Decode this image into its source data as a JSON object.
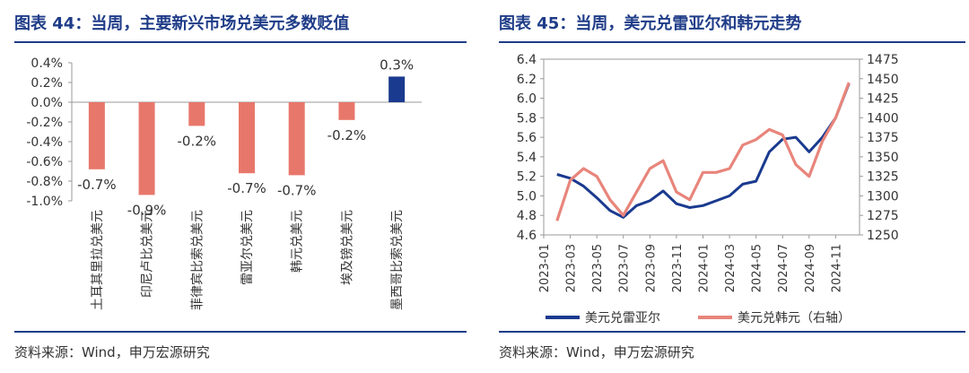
{
  "left": {
    "title": "图表 44：当周，主要新兴市场兑美元多数贬值",
    "source": "资料来源：Wind，申万宏源研究",
    "colors": {
      "negative": "#e8776b",
      "positive": "#1a3a8f"
    }
  },
  "right": {
    "title": "图表 45：当周，美元兑雷亚尔和韩元走势",
    "source": "资料来源：Wind，申万宏源研究",
    "colors": {
      "brl": "#1a3a8f",
      "krw": "#e8857b"
    }
  },
  "chart_data": [
    {
      "type": "bar",
      "categories": [
        "土耳其里拉兑美元",
        "印尼卢比兑美元",
        "菲律宾比索兑美元",
        "雷亚尔兑美元",
        "韩元兑美元",
        "埃及镑兑美元",
        "墨西哥比索兑美元"
      ],
      "values": [
        -0.68,
        -0.94,
        -0.24,
        -0.72,
        -0.74,
        -0.18,
        0.26
      ],
      "data_labels": [
        "-0.7%",
        "-0.9%",
        "-0.2%",
        "-0.7%",
        "-0.7%",
        "-0.2%",
        "0.3%"
      ],
      "ylim": [
        -1.0,
        0.4
      ],
      "yticks": [
        "0.4%",
        "0.2%",
        "0.0%",
        "-0.2%",
        "-0.4%",
        "-0.6%",
        "-0.8%",
        "-1.0%"
      ],
      "title": "",
      "xlabel": "",
      "ylabel": ""
    },
    {
      "type": "line",
      "x": [
        "2023-02",
        "2023-03",
        "2023-04",
        "2023-05",
        "2023-06",
        "2023-07",
        "2023-08",
        "2023-09",
        "2023-10",
        "2023-11",
        "2023-12",
        "2024-01",
        "2024-02",
        "2024-03",
        "2024-04",
        "2024-05",
        "2024-06",
        "2024-07",
        "2024-08",
        "2024-09",
        "2024-10",
        "2024-11",
        "2024-12"
      ],
      "xticks": [
        "2023-01",
        "2023-03",
        "2023-05",
        "2023-07",
        "2023-09",
        "2023-11",
        "2024-01",
        "2024-03",
        "2024-05",
        "2024-07",
        "2024-09",
        "2024-11"
      ],
      "series": [
        {
          "name": "美元兑雷亚尔",
          "axis": "left",
          "values": [
            5.22,
            5.18,
            5.1,
            4.98,
            4.85,
            4.78,
            4.9,
            4.95,
            5.05,
            4.92,
            4.88,
            4.9,
            4.95,
            5.0,
            5.12,
            5.15,
            5.45,
            5.58,
            5.6,
            5.45,
            5.6,
            5.8,
            6.15
          ]
        },
        {
          "name": "美元兑韩元（右轴）",
          "axis": "right",
          "values": [
            1268,
            1320,
            1335,
            1325,
            1295,
            1275,
            1305,
            1335,
            1345,
            1305,
            1295,
            1330,
            1330,
            1335,
            1365,
            1372,
            1385,
            1378,
            1340,
            1325,
            1370,
            1400,
            1445
          ]
        }
      ],
      "ylim_left": [
        4.6,
        6.4
      ],
      "yticks_left": [
        "6.4",
        "6.2",
        "6.0",
        "5.8",
        "5.6",
        "5.4",
        "5.2",
        "5.0",
        "4.8",
        "4.6"
      ],
      "ylim_right": [
        1250,
        1475
      ],
      "yticks_right": [
        "1475",
        "1450",
        "1425",
        "1400",
        "1375",
        "1350",
        "1325",
        "1300",
        "1275",
        "1250"
      ],
      "legend_placement": "bottom",
      "title": "",
      "xlabel": "",
      "ylabel": ""
    }
  ]
}
